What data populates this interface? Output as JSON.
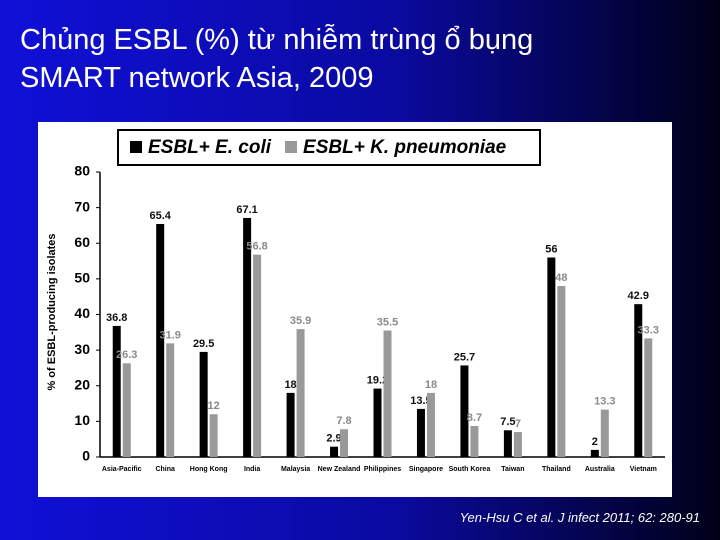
{
  "slide": {
    "title_lines": [
      "Chủng ESBL (%) từ nhiễm trùng ổ bụng",
      "SMART network Asia, 2009"
    ],
    "footer": "Yen-Hsu C et al. J infect 2011; 62: 280-91"
  },
  "chart_data": {
    "type": "bar",
    "y_label": "% of ESBL-producing isolates",
    "categories": [
      "Asia-Pacific",
      "China",
      "Hong Kong",
      "India",
      "Malaysia",
      "New Zealand",
      "Philippines",
      "Singapore",
      "South Korea",
      "Taiwan",
      "Thailand",
      "Australia",
      "Vietnam"
    ],
    "series": [
      {
        "name": "ESBL+ E. coli",
        "color": "#000000",
        "label_color": "#111111",
        "values": [
          36.8,
          65.4,
          29.5,
          67.1,
          18,
          2.9,
          19.2,
          13.5,
          25.7,
          7.5,
          56,
          2,
          42.9
        ]
      },
      {
        "name": "ESBL+ K. pneumoniae",
        "color": "#999999",
        "label_color": "#8a8a8a",
        "values": [
          26.3,
          31.9,
          12,
          56.8,
          35.9,
          7.8,
          35.5,
          18,
          8.7,
          7,
          48,
          13.3,
          33.3
        ]
      }
    ],
    "ylim": [
      0,
      80
    ],
    "yticks": [
      0,
      10,
      20,
      30,
      40,
      50,
      60,
      70,
      80
    ]
  }
}
